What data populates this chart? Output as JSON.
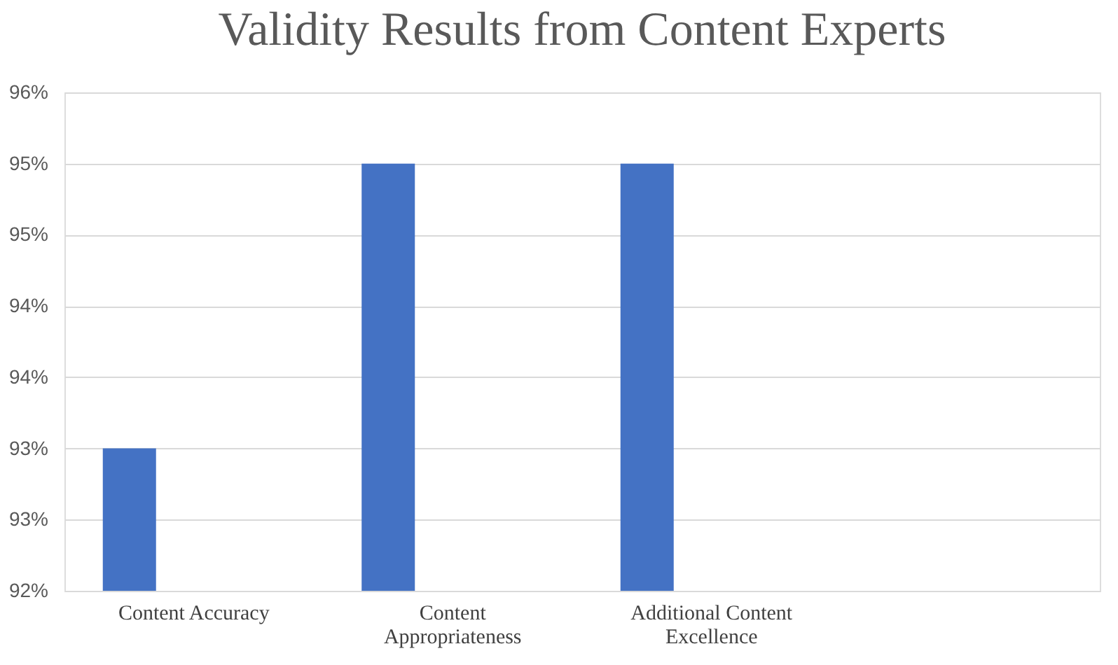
{
  "chart_data": {
    "type": "bar",
    "title": "Validity Results from Content Experts",
    "categories": [
      "Content Accuracy",
      "Content Appropriateness",
      "Additional Content Excellence",
      null
    ],
    "values": [
      93.0,
      95.0,
      95.0,
      null
    ],
    "color": "#4472c4",
    "ylim": [
      92,
      95.5
    ],
    "yticks": [
      {
        "value": 92,
        "label": "92%"
      },
      {
        "value": 92.5,
        "label": "93%"
      },
      {
        "value": 93,
        "label": "93%"
      },
      {
        "value": 93.5,
        "label": "94%"
      },
      {
        "value": 94,
        "label": "94%"
      },
      {
        "value": 94.5,
        "label": "95%"
      },
      {
        "value": 95,
        "label": "95%"
      },
      {
        "value": 95.5,
        "label": "96%"
      }
    ],
    "grid": "y"
  }
}
